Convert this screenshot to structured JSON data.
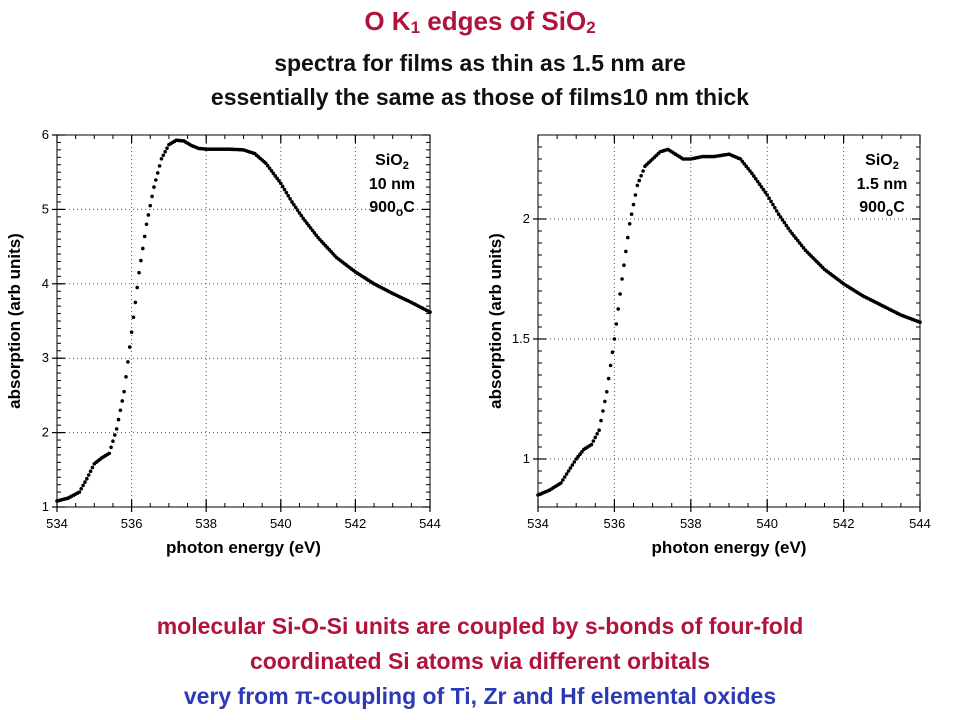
{
  "header": {
    "title_main": "O K",
    "title_sub1": "1",
    "title_mid": " edges of SiO",
    "title_sub2": "2",
    "line2": "spectra for films as thin as 1.5 nm are",
    "line3": "essentially the same as those of films10 nm thick"
  },
  "footer": {
    "line1": "molecular Si-O-Si units are coupled by s-bonds of four-fold",
    "line2": "coordinated Si atoms via different orbitals",
    "line3": "very from π-coupling of Ti, Zr and Hf elemental oxides"
  },
  "colors": {
    "title_red": "#b0143a",
    "footer_blue": "#2c3ab6",
    "data": "#000000"
  },
  "chart_data": [
    {
      "type": "scatter",
      "xlabel": "photon energy (eV)",
      "ylabel": "absorption (arb units)",
      "xlim": [
        534,
        544
      ],
      "ylim": [
        1,
        6
      ],
      "xticks": [
        534,
        536,
        538,
        540,
        542,
        544
      ],
      "yticks": [
        1,
        2,
        3,
        4,
        5,
        6
      ],
      "grid": true,
      "annotation": {
        "line1": "SiO",
        "line1_sub": "2",
        "line2": "10 nm",
        "line3": "900",
        "line3_sub": "o",
        "line3_end": "C"
      },
      "series": [
        {
          "x": [
            534.0,
            534.3,
            534.6,
            534.8,
            535.0,
            535.2,
            535.4,
            535.6,
            535.8,
            536.0,
            536.2,
            536.4,
            536.6,
            536.8,
            537.0,
            537.2,
            537.4,
            537.6,
            537.8,
            538.0,
            538.3,
            538.6,
            539.0,
            539.3,
            539.6,
            540.0,
            540.3,
            540.6,
            541.0,
            541.5,
            542.0,
            542.5,
            543.0,
            543.5,
            544.0
          ],
          "y": [
            1.08,
            1.12,
            1.2,
            1.38,
            1.58,
            1.66,
            1.72,
            2.05,
            2.55,
            3.35,
            4.15,
            4.8,
            5.3,
            5.68,
            5.87,
            5.93,
            5.92,
            5.86,
            5.82,
            5.81,
            5.81,
            5.81,
            5.8,
            5.75,
            5.62,
            5.35,
            5.1,
            4.88,
            4.62,
            4.35,
            4.16,
            4.0,
            3.87,
            3.75,
            3.62
          ]
        }
      ]
    },
    {
      "type": "scatter",
      "xlabel": "photon energy (eV)",
      "ylabel": "absorption (arb units)",
      "xlim": [
        534,
        544
      ],
      "ylim": [
        0.8,
        2.35
      ],
      "xticks": [
        534,
        536,
        538,
        540,
        542,
        544
      ],
      "yticks": [
        1,
        1.5,
        2
      ],
      "grid": true,
      "annotation": {
        "line1": "SiO",
        "line1_sub": "2",
        "line2": "1.5 nm",
        "line3": "900",
        "line3_sub": "o",
        "line3_end": "C"
      },
      "series": [
        {
          "x": [
            534.0,
            534.3,
            534.6,
            534.8,
            535.0,
            535.2,
            535.4,
            535.6,
            535.8,
            536.0,
            536.2,
            536.4,
            536.6,
            536.8,
            537.0,
            537.2,
            537.4,
            537.6,
            537.8,
            538.0,
            538.3,
            538.6,
            539.0,
            539.3,
            539.6,
            540.0,
            540.3,
            540.6,
            541.0,
            541.5,
            542.0,
            542.5,
            543.0,
            543.5,
            544.0
          ],
          "y": [
            0.85,
            0.87,
            0.9,
            0.95,
            1.0,
            1.04,
            1.06,
            1.12,
            1.28,
            1.5,
            1.75,
            1.98,
            2.14,
            2.22,
            2.25,
            2.28,
            2.29,
            2.27,
            2.25,
            2.25,
            2.26,
            2.26,
            2.27,
            2.25,
            2.19,
            2.1,
            2.02,
            1.95,
            1.87,
            1.79,
            1.73,
            1.68,
            1.64,
            1.6,
            1.57
          ]
        }
      ]
    }
  ]
}
